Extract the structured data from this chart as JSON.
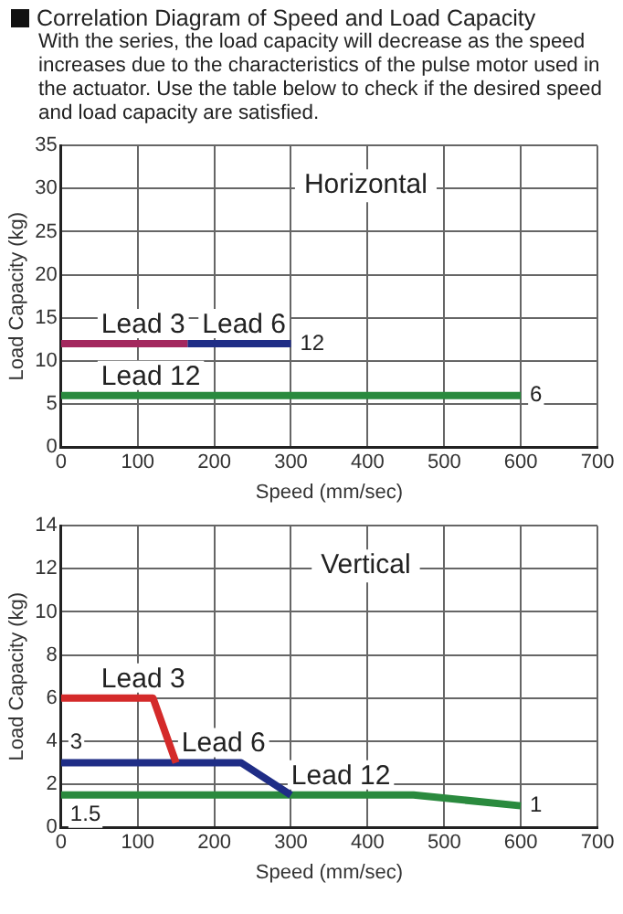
{
  "chart_data": [
    {
      "type": "other",
      "title": "Correlation Diagram of Speed and Load Capacity",
      "subtitle": "With the series, the load capacity will decrease as the speed increases due to the characteristics of the pulse motor used in the actuator. Use the table below to check if the desired speed and load capacity are satisfied."
    },
    {
      "type": "line",
      "title": "Horizontal",
      "xlabel": "Speed (mm/sec)",
      "ylabel": "Load Capacity (kg)",
      "xlim": [
        0,
        700
      ],
      "xticks": [
        0,
        100,
        200,
        300,
        400,
        500,
        600,
        700
      ],
      "ylim": [
        0,
        35
      ],
      "yticks": [
        0,
        5,
        10,
        15,
        20,
        25,
        30,
        35
      ],
      "grid": true,
      "legend": false,
      "marker": "none",
      "line_style": "solid",
      "series": [
        {
          "name": "Lead 3",
          "color": "#a3285e",
          "x": [
            0,
            165
          ],
          "values": [
            12,
            12
          ]
        },
        {
          "name": "Lead 6",
          "color": "#1f2d86",
          "x": [
            165,
            300
          ],
          "values": [
            12,
            12
          ]
        },
        {
          "name": "Lead 12",
          "color": "#2a8a3e",
          "x": [
            0,
            600
          ],
          "values": [
            6,
            6
          ]
        }
      ],
      "annotations": [
        {
          "text": "12",
          "x": 300,
          "y": 12
        },
        {
          "text": "6",
          "x": 600,
          "y": 6
        }
      ]
    },
    {
      "type": "line",
      "title": "Vertical",
      "xlabel": "Speed (mm/sec)",
      "ylabel": "Load Capacity (kg)",
      "xlim": [
        0,
        700
      ],
      "xticks": [
        0,
        100,
        200,
        300,
        400,
        500,
        600,
        700
      ],
      "ylim": [
        0,
        14
      ],
      "yticks": [
        0,
        2,
        4,
        6,
        8,
        10,
        12,
        14
      ],
      "grid": true,
      "legend": false,
      "marker": "none",
      "line_style": "solid",
      "series": [
        {
          "name": "Lead 3",
          "color": "#d42a2a",
          "x": [
            0,
            120,
            150
          ],
          "values": [
            6,
            6,
            3
          ]
        },
        {
          "name": "Lead 6",
          "color": "#1f2d86",
          "x": [
            0,
            235,
            300
          ],
          "values": [
            3,
            3,
            1.5
          ]
        },
        {
          "name": "Lead 12",
          "color": "#2a8a3e",
          "x": [
            0,
            460,
            600
          ],
          "values": [
            1.5,
            1.5,
            1
          ]
        }
      ],
      "annotations": [
        {
          "text": "3",
          "x": 0,
          "y": 3
        },
        {
          "text": "1.5",
          "x": 0,
          "y": 1.5
        },
        {
          "text": "1",
          "x": 600,
          "y": 1
        }
      ]
    }
  ]
}
